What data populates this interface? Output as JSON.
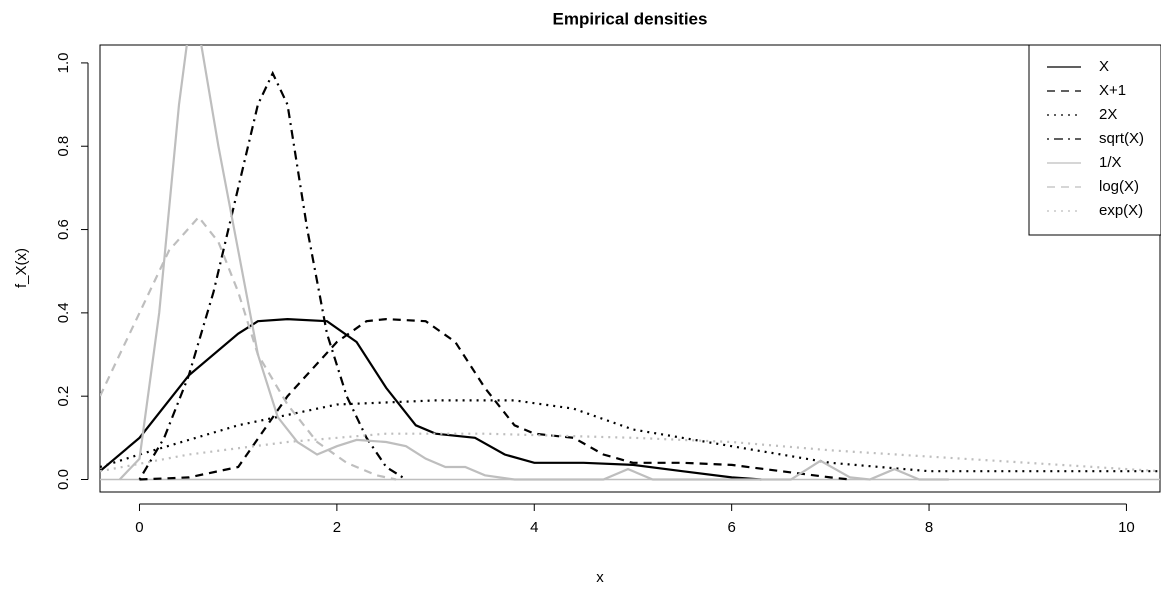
{
  "chart_data": {
    "type": "line",
    "title": "Empirical densities",
    "x_label": "x",
    "y_label": "f_X(x)",
    "xlim": [
      -0.4,
      10.34
    ],
    "ylim": [
      -0.03,
      1.043
    ],
    "xticks": [
      0,
      2,
      4,
      6,
      8,
      10
    ],
    "yticks": [
      {
        "value": 0,
        "label": "0.0"
      },
      {
        "value": 0.2,
        "label": "0.2"
      },
      {
        "value": 0.4,
        "label": "0.4"
      },
      {
        "value": 0.6,
        "label": "0.6"
      },
      {
        "value": 0.8,
        "label": "0.8"
      },
      {
        "value": 1.0,
        "label": "1.0"
      }
    ],
    "hline": 0,
    "hline_color": "#bebebe",
    "legend": "top-right",
    "series": [
      {
        "name": "X",
        "color": "#000000",
        "linestyle": "solid",
        "x": [
          -0.4,
          0,
          0.5,
          1.0,
          1.2,
          1.5,
          1.9,
          2.2,
          2.5,
          2.8,
          3.0,
          3.4,
          3.7,
          4.0,
          4.5,
          5.0,
          5.5,
          6.0,
          6.3
        ],
        "values": [
          0.02,
          0.1,
          0.25,
          0.35,
          0.38,
          0.385,
          0.38,
          0.33,
          0.22,
          0.13,
          0.11,
          0.1,
          0.06,
          0.04,
          0.04,
          0.035,
          0.02,
          0.005,
          0.0
        ]
      },
      {
        "name": "X+1",
        "color": "#000000",
        "linestyle": "dashed",
        "x": [
          0.0,
          0.5,
          1.0,
          1.5,
          2.0,
          2.3,
          2.5,
          2.9,
          3.2,
          3.5,
          3.8,
          4.0,
          4.4,
          4.7,
          5.0,
          5.5,
          6.0,
          6.5,
          7.0,
          7.2
        ],
        "values": [
          0.0,
          0.005,
          0.03,
          0.2,
          0.33,
          0.38,
          0.385,
          0.38,
          0.33,
          0.22,
          0.13,
          0.11,
          0.1,
          0.06,
          0.04,
          0.04,
          0.035,
          0.02,
          0.005,
          0.0
        ]
      },
      {
        "name": "2X",
        "color": "#000000",
        "linestyle": "dotted",
        "x": [
          -0.4,
          0,
          1,
          2,
          3,
          3.8,
          4.4,
          5,
          5.5,
          6,
          7,
          8,
          9,
          10.34
        ],
        "values": [
          0.03,
          0.06,
          0.13,
          0.18,
          0.19,
          0.19,
          0.17,
          0.12,
          0.1,
          0.08,
          0.04,
          0.02,
          0.02,
          0.02
        ]
      },
      {
        "name": "sqrt(X)",
        "color": "#000000",
        "linestyle": "dotdash",
        "x": [
          0.0,
          0.25,
          0.5,
          0.75,
          1.0,
          1.2,
          1.35,
          1.5,
          1.7,
          1.9,
          2.1,
          2.3,
          2.5,
          2.7
        ],
        "values": [
          0.0,
          0.1,
          0.25,
          0.45,
          0.7,
          0.9,
          0.975,
          0.9,
          0.6,
          0.35,
          0.2,
          0.1,
          0.03,
          0.0
        ]
      },
      {
        "name": "1/X",
        "color": "#bebebe",
        "linestyle": "solid",
        "x": [
          -0.2,
          0.0,
          0.2,
          0.4,
          0.5,
          0.6,
          0.8,
          1.0,
          1.2,
          1.4,
          1.6,
          1.8,
          2.0,
          2.2,
          2.5,
          2.7,
          2.9,
          3.1,
          3.3,
          3.5,
          3.8,
          4.7,
          4.95,
          5.2,
          6.6,
          6.9,
          7.2,
          7.4,
          7.65,
          7.9,
          8.2
        ],
        "values": [
          0.0,
          0.05,
          0.4,
          0.9,
          1.08,
          1.08,
          0.8,
          0.55,
          0.3,
          0.15,
          0.09,
          0.06,
          0.08,
          0.095,
          0.09,
          0.08,
          0.05,
          0.03,
          0.03,
          0.01,
          0.0,
          0.0,
          0.025,
          0.0,
          0.0,
          0.045,
          0.005,
          0.0,
          0.025,
          0.0,
          0.0
        ]
      },
      {
        "name": "log(X)",
        "color": "#bebebe",
        "linestyle": "dashed",
        "x": [
          -0.4,
          -0.2,
          0.0,
          0.3,
          0.6,
          0.8,
          1.0,
          1.2,
          1.5,
          1.8,
          2.1,
          2.4,
          2.6
        ],
        "values": [
          0.2,
          0.3,
          0.4,
          0.55,
          0.63,
          0.57,
          0.45,
          0.3,
          0.18,
          0.09,
          0.04,
          0.01,
          0.0
        ]
      },
      {
        "name": "exp(X)",
        "color": "#bebebe",
        "linestyle": "dotted",
        "x": [
          -0.4,
          0.5,
          1.5,
          2.5,
          3.5,
          5,
          6,
          7,
          8,
          9,
          10.34
        ],
        "values": [
          0.02,
          0.06,
          0.09,
          0.11,
          0.11,
          0.1,
          0.09,
          0.07,
          0.055,
          0.04,
          0.02
        ]
      }
    ]
  }
}
